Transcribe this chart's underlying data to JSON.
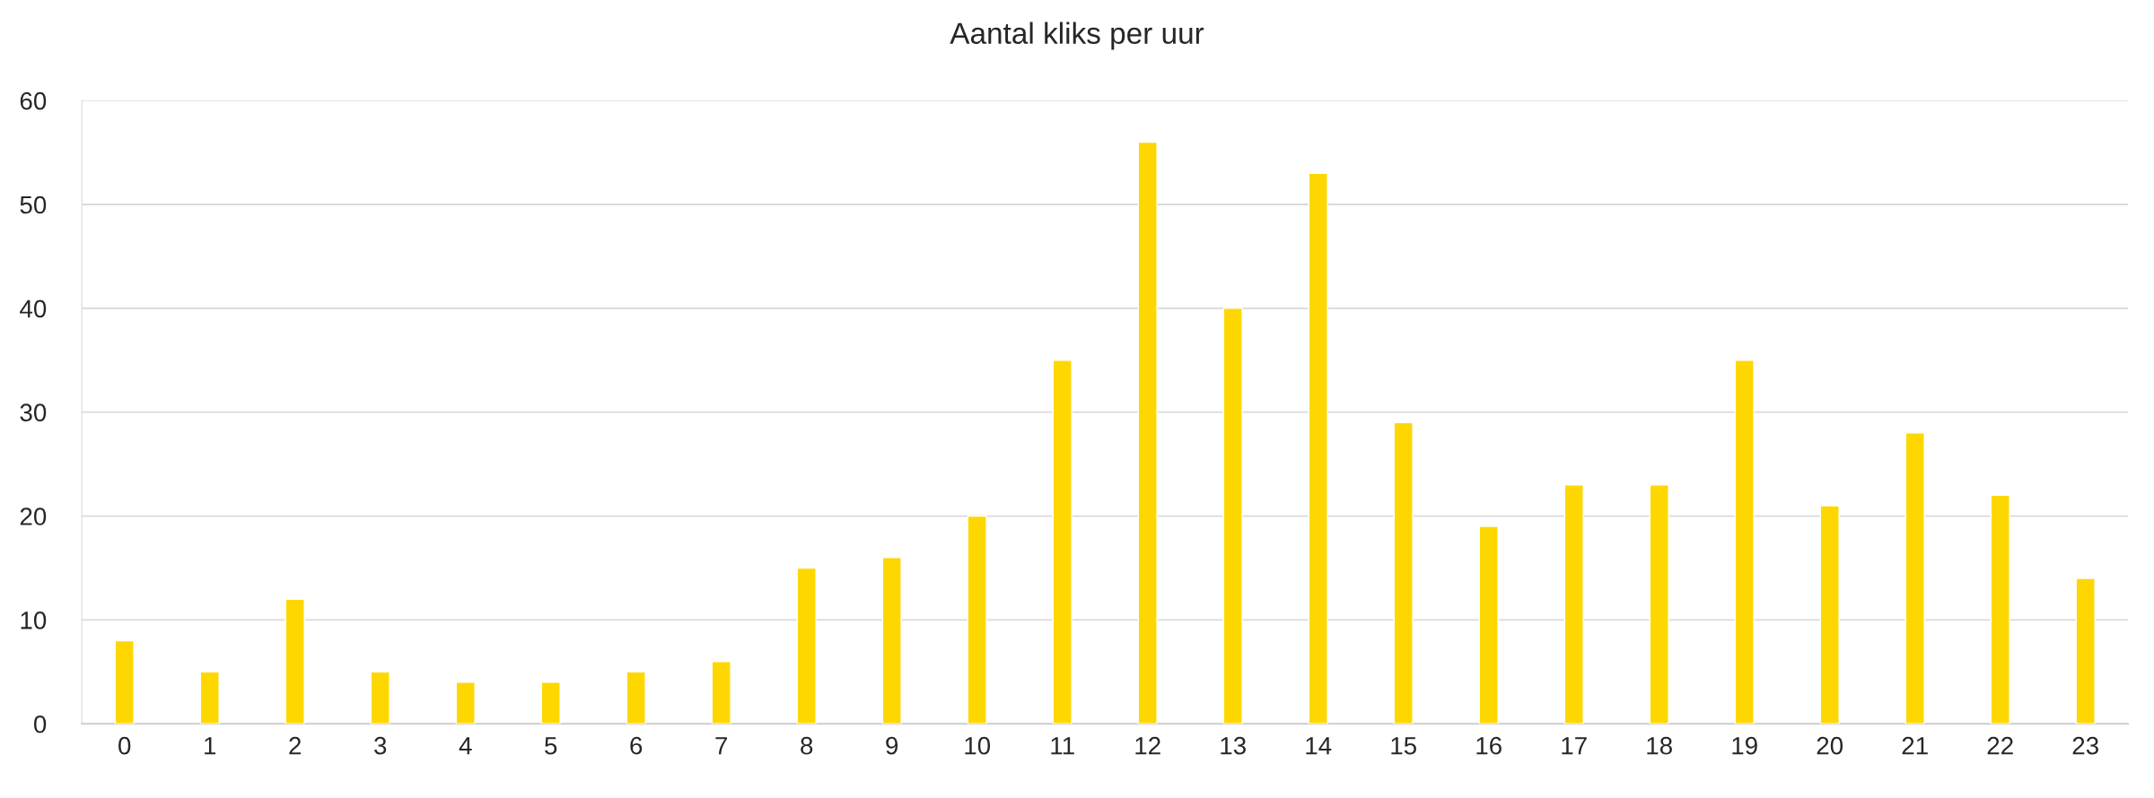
{
  "chart_data": {
    "type": "bar",
    "title": "Aantal kliks per uur",
    "categories": [
      "0",
      "1",
      "2",
      "3",
      "4",
      "5",
      "6",
      "7",
      "8",
      "9",
      "10",
      "11",
      "12",
      "13",
      "14",
      "15",
      "16",
      "17",
      "18",
      "19",
      "20",
      "21",
      "22",
      "23"
    ],
    "values": [
      8,
      5,
      12,
      5,
      4,
      4,
      5,
      6,
      15,
      16,
      20,
      35,
      56,
      40,
      53,
      29,
      19,
      23,
      23,
      35,
      21,
      28,
      22,
      14
    ],
    "color": "#ffd700",
    "ylim": [
      0,
      60
    ],
    "yticks": [
      0,
      10,
      20,
      30,
      40,
      50,
      60
    ],
    "grid": "y"
  }
}
